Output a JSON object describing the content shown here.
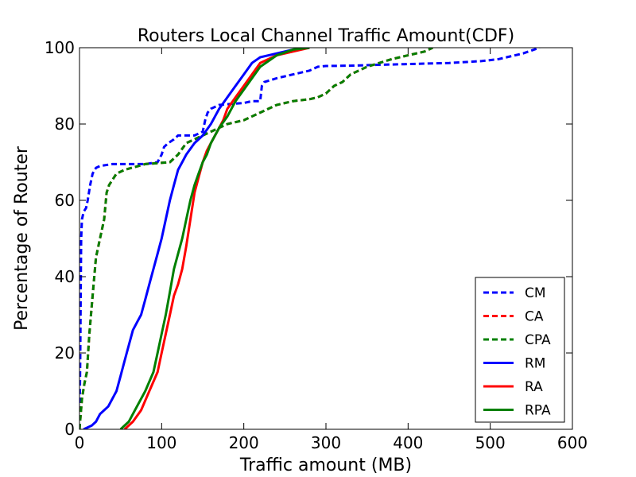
{
  "chart_data": {
    "type": "line",
    "title": "Routers Local Channel Traffic Amount(CDF)",
    "xlabel": "Traffic amount (MB)",
    "ylabel": "Percentage of Router",
    "xlim": [
      0,
      600
    ],
    "ylim": [
      0,
      100
    ],
    "xticks": [
      "0",
      "100",
      "200",
      "300",
      "400",
      "500",
      "600"
    ],
    "yticks": [
      "0",
      "20",
      "40",
      "60",
      "80",
      "100"
    ],
    "grid": false,
    "legend": "bottom-right",
    "series": [
      {
        "name": "CM",
        "color": "#0000ff",
        "style": "dashed",
        "x": [
          0,
          0.5,
          1,
          1.5,
          2,
          3,
          5,
          8,
          10,
          13,
          16,
          20,
          25,
          40,
          60,
          80,
          95,
          100,
          103,
          108,
          115,
          120,
          140,
          150,
          153,
          156,
          160,
          170,
          185,
          200,
          210,
          220,
          222,
          225,
          240,
          260,
          280,
          290,
          300,
          330,
          360,
          400,
          450,
          490,
          510,
          540,
          560
        ],
        "y": [
          0,
          10,
          20,
          35,
          50,
          55,
          57,
          58,
          60,
          64,
          67,
          68.5,
          69,
          69.5,
          69.5,
          69.5,
          70,
          72,
          74,
          75,
          76,
          77,
          77,
          78,
          81,
          83,
          84,
          85,
          85.3,
          85.5,
          86,
          86,
          90,
          91,
          92,
          93,
          94,
          95,
          95.2,
          95.3,
          95.5,
          95.7,
          96,
          96.5,
          97,
          98.5,
          100
        ]
      },
      {
        "name": "CA",
        "color": "#ff0000",
        "style": "dashed",
        "x": [
          0,
          3,
          6,
          9,
          12,
          16,
          20,
          25,
          30,
          33,
          36,
          45,
          55,
          80,
          110,
          120,
          130,
          140,
          150,
          160,
          170,
          180,
          200,
          220,
          240,
          260,
          280,
          290,
          300,
          310,
          320,
          330,
          350,
          380,
          400,
          420,
          430
        ],
        "y": [
          0,
          8,
          12,
          15,
          25,
          35,
          45,
          50,
          55,
          62,
          64,
          67,
          68,
          69.5,
          70,
          72,
          75,
          76,
          77,
          78,
          79,
          80,
          81,
          83,
          85,
          86,
          86.5,
          87,
          88,
          90,
          91,
          93,
          95,
          97,
          98,
          99,
          100
        ]
      },
      {
        "name": "CPA",
        "color": "#008000",
        "style": "dashed",
        "x": [
          0,
          3,
          6,
          9,
          12,
          16,
          20,
          25,
          30,
          33,
          36,
          45,
          55,
          80,
          110,
          120,
          130,
          140,
          150,
          160,
          170,
          180,
          200,
          220,
          240,
          260,
          280,
          290,
          300,
          310,
          320,
          330,
          350,
          380,
          400,
          420,
          430
        ],
        "y": [
          0,
          8,
          12,
          15,
          25,
          35,
          45,
          50,
          55,
          62,
          64,
          67,
          68,
          69.5,
          70,
          72,
          75,
          76,
          77,
          78,
          79,
          80,
          81,
          83,
          85,
          86,
          86.5,
          87,
          88,
          90,
          91,
          93,
          95,
          97,
          98,
          99,
          100
        ]
      },
      {
        "name": "RM",
        "color": "#0000ff",
        "style": "solid",
        "x": [
          5,
          10,
          15,
          20,
          25,
          35,
          45,
          50,
          55,
          60,
          65,
          70,
          75,
          80,
          85,
          90,
          95,
          100,
          105,
          110,
          115,
          120,
          125,
          130,
          140,
          150,
          160,
          170,
          180,
          190,
          200,
          210,
          220,
          240,
          260,
          280
        ],
        "y": [
          0,
          0.5,
          1,
          2,
          4,
          6,
          10,
          14,
          18,
          22,
          26,
          28,
          30,
          34,
          38,
          42,
          46,
          50,
          55,
          60,
          64,
          68,
          70,
          72,
          75,
          77,
          80,
          84,
          87,
          90,
          93,
          96,
          97.5,
          98.5,
          99.5,
          100
        ]
      },
      {
        "name": "RA",
        "color": "#ff0000",
        "style": "solid",
        "x": [
          55,
          65,
          75,
          85,
          95,
          100,
          105,
          110,
          115,
          120,
          125,
          130,
          135,
          140,
          145,
          150,
          155,
          160,
          165,
          170,
          175,
          180,
          190,
          200,
          210,
          220,
          240,
          260,
          280
        ],
        "y": [
          0,
          2,
          5,
          10,
          15,
          20,
          25,
          30,
          35,
          38,
          42,
          48,
          55,
          62,
          66,
          70,
          73,
          75,
          77,
          79,
          81,
          84,
          87,
          90,
          93,
          96,
          98,
          99,
          100
        ]
      },
      {
        "name": "RPA",
        "color": "#008000",
        "style": "solid",
        "x": [
          50,
          60,
          70,
          80,
          90,
          95,
          100,
          105,
          110,
          115,
          120,
          125,
          130,
          135,
          140,
          145,
          150,
          155,
          160,
          165,
          170,
          180,
          190,
          200,
          210,
          220,
          240,
          260,
          280
        ],
        "y": [
          0,
          2,
          6,
          10,
          15,
          20,
          25,
          30,
          36,
          42,
          46,
          50,
          55,
          60,
          64,
          67,
          70,
          72,
          75,
          77,
          79,
          82,
          86,
          89,
          92,
          95,
          98,
          99.5,
          100
        ]
      }
    ]
  }
}
